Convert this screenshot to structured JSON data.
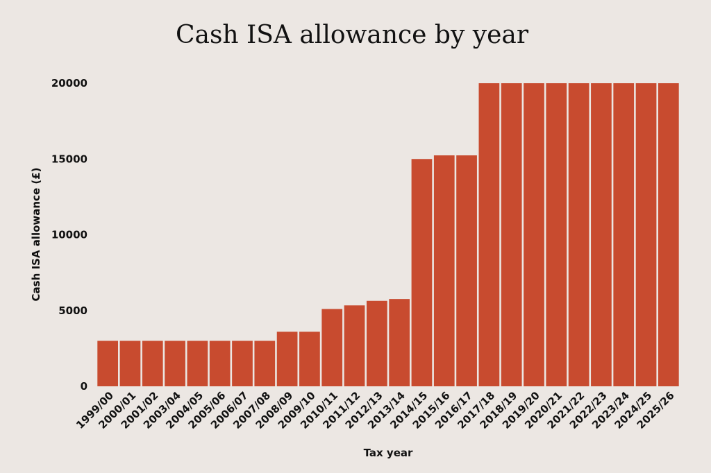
{
  "colors": {
    "background": "#ece7e3",
    "bar": "#c84b2f",
    "text": "#111111"
  },
  "chart_data": {
    "type": "bar",
    "title": "Cash ISA allowance by year",
    "xlabel": "Tax year",
    "ylabel": "Cash ISA allowance (£)",
    "ylim": [
      0,
      20000
    ],
    "yticks": [
      0,
      5000,
      10000,
      15000,
      20000
    ],
    "grid": false,
    "legend": "none",
    "categories": [
      "1999/00",
      "2000/01",
      "2001/02",
      "2003/04",
      "2004/05",
      "2005/06",
      "2006/07",
      "2007/08",
      "2008/09",
      "2009/10",
      "2010/11",
      "2011/12",
      "2012/13",
      "2013/14",
      "2014/15",
      "2015/16",
      "2016/17",
      "2017/18",
      "2018/19",
      "2019/20",
      "2020/21",
      "2021/22",
      "2022/23",
      "2023/24",
      "2024/25",
      "2025/26"
    ],
    "values": [
      3000,
      3000,
      3000,
      3000,
      3000,
      3000,
      3000,
      3000,
      3600,
      3600,
      5100,
      5340,
      5640,
      5760,
      15000,
      15240,
      15240,
      20000,
      20000,
      20000,
      20000,
      20000,
      20000,
      20000,
      20000,
      20000
    ]
  }
}
